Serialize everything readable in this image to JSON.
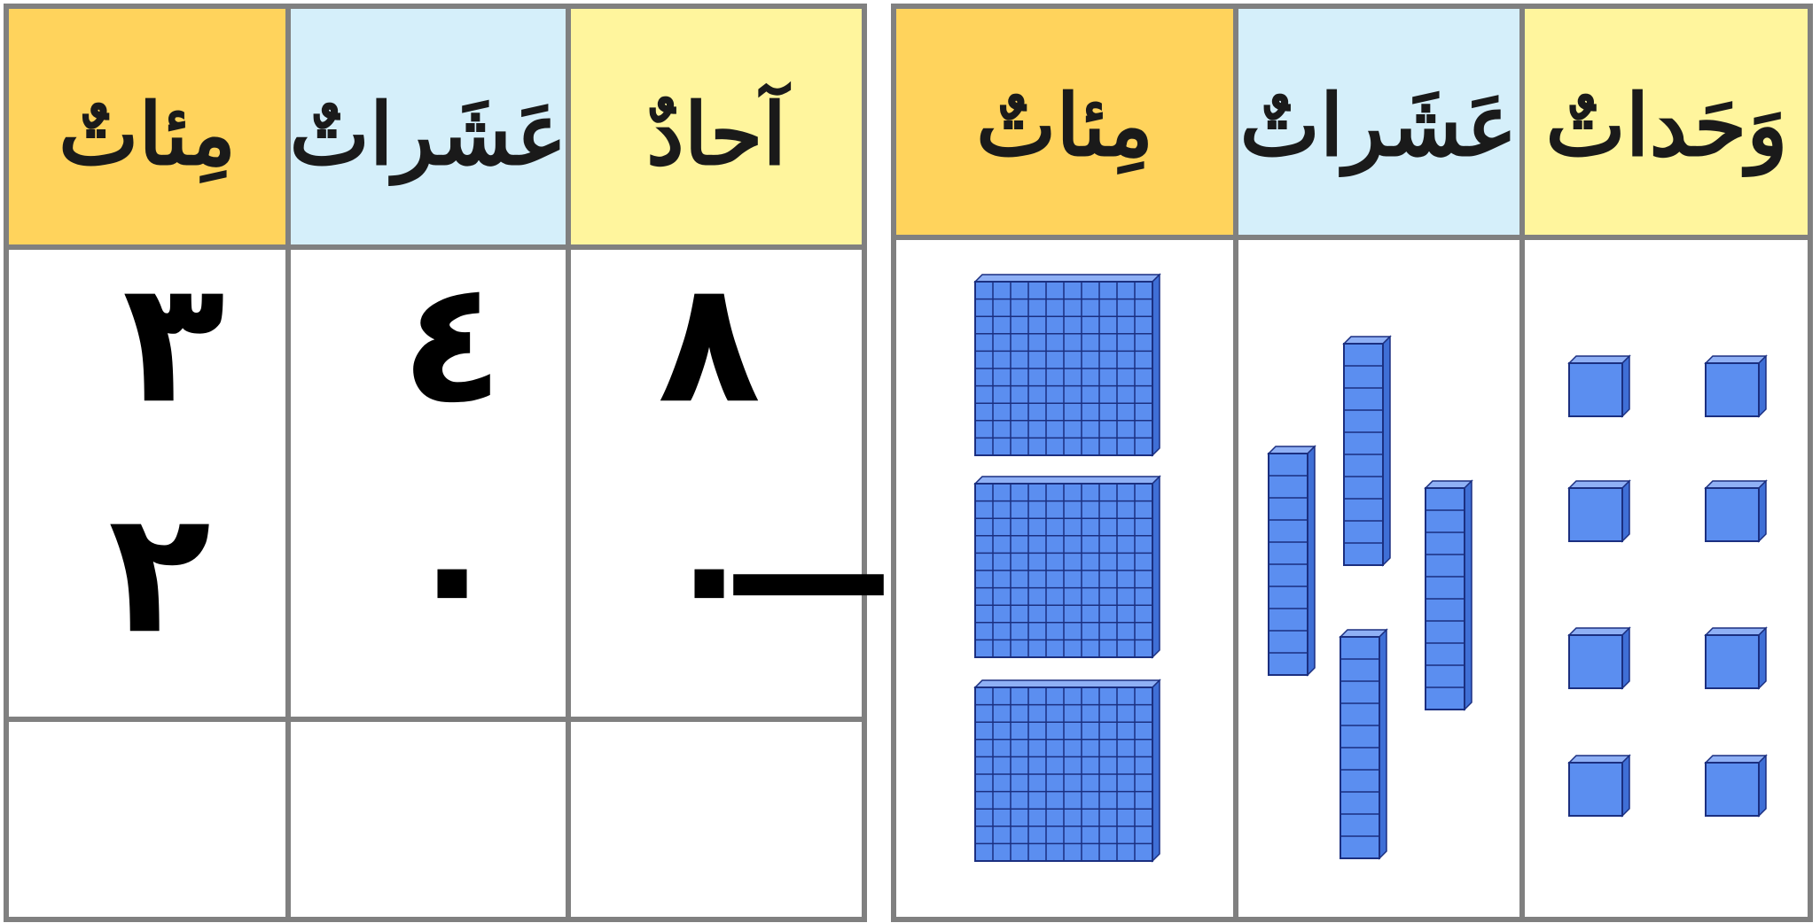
{
  "place_value_table": {
    "headers": [
      "مِئاتٌ",
      "عَشَراتٌ",
      "آحادٌ"
    ],
    "rows": [
      [
        "٣",
        "٤",
        "٨"
      ],
      [
        "٢",
        "٠",
        "٠"
      ]
    ],
    "operator": "—"
  },
  "blocks_table": {
    "headers": [
      "مِئاتٌ",
      "عَشَراتٌ",
      "وَحَداتٌ"
    ]
  }
}
